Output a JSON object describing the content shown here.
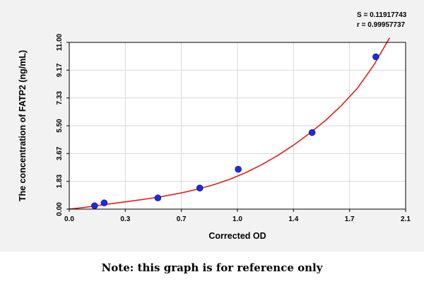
{
  "chart_data": {
    "type": "scatter",
    "title": "",
    "xlabel": "Corrected OD",
    "ylabel": "The concentration of FATP2 (ng/mL)",
    "xlim": [
      0.0,
      2.1
    ],
    "ylim": [
      0.0,
      11.0
    ],
    "x_ticks": [
      "0.0",
      "0.3",
      "0.7",
      "1.0",
      "1.4",
      "1.7",
      "2.1"
    ],
    "y_ticks": [
      "0.00",
      "1.83",
      "3.67",
      "5.50",
      "7.33",
      "9.17",
      "11.00"
    ],
    "grid": true,
    "series": [
      {
        "x": [
          0.158,
          0.218,
          0.553,
          0.815,
          1.055,
          1.516,
          1.914
        ],
        "y": [
          0.22,
          0.41,
          0.74,
          1.39,
          2.63,
          5.05,
          10.05
        ]
      }
    ],
    "fit_curve": {
      "x": [
        0.0,
        0.1,
        0.2,
        0.3,
        0.4,
        0.5,
        0.6,
        0.7,
        0.8,
        0.9,
        1.0,
        1.1,
        1.2,
        1.3,
        1.4,
        1.5,
        1.6,
        1.7,
        1.8,
        1.9,
        2.0
      ],
      "y": [
        0.0,
        0.12,
        0.27,
        0.41,
        0.55,
        0.7,
        0.87,
        1.07,
        1.31,
        1.6,
        1.96,
        2.4,
        2.92,
        3.53,
        4.22,
        5.0,
        5.85,
        6.85,
        7.99,
        9.48,
        11.3
      ]
    },
    "stats": {
      "s": "S = 0.11917743",
      "r": "r = 0.99957737"
    },
    "colors": {
      "curve": "#e0201c",
      "points": "#1f2bd6",
      "grid": "#d9d9d9",
      "panel": "#f2f2f2"
    }
  },
  "note": "Note: this graph is for reference only"
}
